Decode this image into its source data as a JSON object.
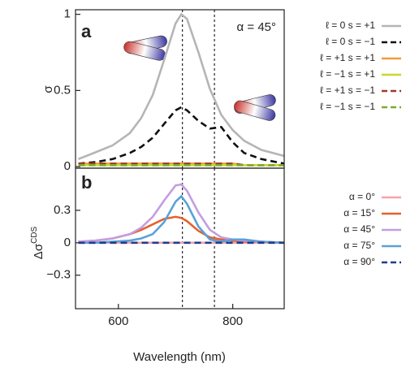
{
  "chart_data": [
    {
      "type": "line",
      "panel_label": "a",
      "annotation": "α = 45°",
      "ylabel": "σ",
      "x": [
        530,
        560,
        590,
        620,
        640,
        660,
        680,
        700,
        710,
        720,
        740,
        760,
        780,
        800,
        820,
        850,
        890
      ],
      "xlim": [
        525,
        890
      ],
      "ylim": [
        -0.01,
        1.03
      ],
      "yticks": [
        0,
        0.5,
        1
      ],
      "vlines": [
        712,
        768
      ],
      "legend": "outside-right",
      "series": [
        {
          "name": "ℓ = 0 s = +1",
          "color": "#b5b5b5",
          "dash": false,
          "values": [
            0.05,
            0.094,
            0.14,
            0.22,
            0.32,
            0.47,
            0.7,
            0.94,
            1.0,
            0.97,
            0.75,
            0.51,
            0.34,
            0.24,
            0.17,
            0.11,
            0.07
          ]
        },
        {
          "name": "ℓ = 0 s = −1",
          "color": "#111111",
          "dash": true,
          "values": [
            0.02,
            0.03,
            0.05,
            0.09,
            0.13,
            0.19,
            0.28,
            0.37,
            0.39,
            0.37,
            0.3,
            0.25,
            0.26,
            0.16,
            0.09,
            0.05,
            0.02
          ]
        },
        {
          "name": "ℓ = +1 s = +1",
          "color": "#f39a3a",
          "dash": false,
          "values": [
            0.02,
            0.02,
            0.02,
            0.02,
            0.02,
            0.02,
            0.02,
            0.02,
            0.02,
            0.02,
            0.02,
            0.02,
            0.02,
            0.02,
            0.01,
            0.01,
            0.01
          ]
        },
        {
          "name": "ℓ = −1 s = +1",
          "color": "#c9d82e",
          "dash": false,
          "values": [
            0.01,
            0.01,
            0.01,
            0.01,
            0.01,
            0.01,
            0.01,
            0.01,
            0.01,
            0.01,
            0.01,
            0.01,
            0.01,
            0.01,
            0.01,
            0.01,
            0.01
          ]
        },
        {
          "name": "ℓ = +1 s = −1",
          "color": "#9c3d27",
          "dash": true,
          "values": [
            0.02,
            0.02,
            0.02,
            0.02,
            0.02,
            0.02,
            0.02,
            0.02,
            0.02,
            0.02,
            0.02,
            0.02,
            0.02,
            0.02,
            0.01,
            0.01,
            0.01
          ]
        },
        {
          "name": "ℓ = −1 s = −1",
          "color": "#7bab2f",
          "dash": true,
          "values": [
            0.01,
            0.01,
            0.01,
            0.01,
            0.01,
            0.01,
            0.01,
            0.01,
            0.01,
            0.01,
            0.01,
            0.01,
            0.01,
            0.01,
            0.01,
            0.01,
            0.01
          ]
        }
      ]
    },
    {
      "type": "line",
      "panel_label": "b",
      "ylabel": "Δσ",
      "ylabel_superscript": "CDS",
      "xlabel": "Wavelength (nm)",
      "x": [
        530,
        560,
        590,
        620,
        640,
        660,
        680,
        700,
        710,
        720,
        740,
        760,
        780,
        800,
        820,
        850,
        890
      ],
      "xlim": [
        525,
        890
      ],
      "ylim": [
        -0.61,
        0.69
      ],
      "xticks": [
        600,
        800
      ],
      "yticks": [
        {
          "value": -0.3,
          "label": "−0.3"
        },
        0,
        0.3
      ],
      "vlines": [
        712,
        768
      ],
      "legend": "outside-right",
      "series": [
        {
          "name": "α = 0°",
          "color": "#f5a3a8",
          "dash": false,
          "values": [
            0,
            0,
            0,
            0,
            0,
            0,
            0,
            0,
            0,
            0,
            0,
            0,
            0,
            0,
            0,
            0,
            0
          ]
        },
        {
          "name": "α = 15°",
          "color": "#e5622b",
          "dash": false,
          "values": [
            0.01,
            0.02,
            0.04,
            0.08,
            0.12,
            0.17,
            0.22,
            0.24,
            0.23,
            0.2,
            0.11,
            0.05,
            0.03,
            0.02,
            0.01,
            0.01,
            0
          ]
        },
        {
          "name": "α = 45°",
          "color": "#c49de2",
          "dash": false,
          "values": [
            0.01,
            0.02,
            0.04,
            0.08,
            0.14,
            0.24,
            0.39,
            0.53,
            0.54,
            0.48,
            0.28,
            0.12,
            0.05,
            0.03,
            0.02,
            0.01,
            0
          ]
        },
        {
          "name": "α = 75°",
          "color": "#5aa1d9",
          "dash": false,
          "values": [
            0,
            0,
            0.01,
            0.02,
            0.04,
            0.08,
            0.19,
            0.38,
            0.43,
            0.36,
            0.15,
            0.03,
            0.01,
            0.03,
            0.03,
            0.01,
            0
          ]
        },
        {
          "name": "α = 90°",
          "color": "#1f3d8c",
          "dash": true,
          "values": [
            0,
            0,
            0,
            0,
            0,
            0,
            0,
            0,
            0,
            0,
            0,
            0,
            0,
            0,
            0,
            0,
            0
          ]
        }
      ]
    }
  ]
}
